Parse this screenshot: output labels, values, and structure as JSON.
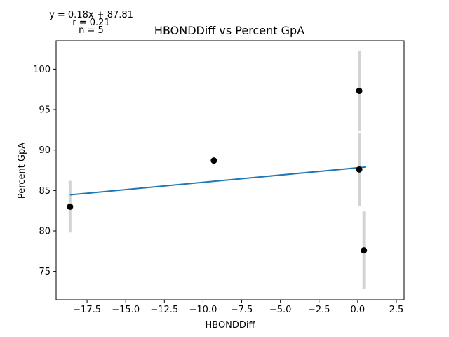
{
  "chart_data": {
    "type": "scatter",
    "title": "HBONDDiff vs Percent GpA",
    "xlabel": "HBONDDiff",
    "ylabel": "Percent GpA",
    "xlim": [
      -19.5,
      3.0
    ],
    "ylim": [
      71.5,
      103.5
    ],
    "xticks": [
      -17.5,
      -15.0,
      -12.5,
      -10.0,
      -7.5,
      -5.0,
      -2.5,
      0.0,
      2.5
    ],
    "xtick_labels": [
      "−17.5",
      "−15.0",
      "−12.5",
      "−10.0",
      "−7.5",
      "−5.0",
      "−2.5",
      "0.0",
      "2.5"
    ],
    "yticks": [
      75,
      80,
      85,
      90,
      95,
      100
    ],
    "ytick_labels": [
      "75",
      "80",
      "85",
      "90",
      "95",
      "100"
    ],
    "grid": false,
    "points": [
      {
        "x": -18.6,
        "y": 83.0,
        "err": 3.2
      },
      {
        "x": -9.3,
        "y": 88.7,
        "err": 0.5
      },
      {
        "x": 0.1,
        "y": 97.3,
        "err": 5.0
      },
      {
        "x": 0.1,
        "y": 87.6,
        "err": 4.5
      },
      {
        "x": 0.4,
        "y": 77.6,
        "err": 4.8
      }
    ],
    "fit": {
      "slope": 0.18,
      "intercept": 87.81,
      "x_range": [
        -18.6,
        0.5
      ],
      "color": "#1f77b4"
    },
    "point_color": "#000000",
    "errorbar_color": "#d3d3d3",
    "annotations": {
      "equation": "y = 0.18x + 87.81",
      "r": "r = 0.21",
      "n": "n = 5"
    }
  }
}
